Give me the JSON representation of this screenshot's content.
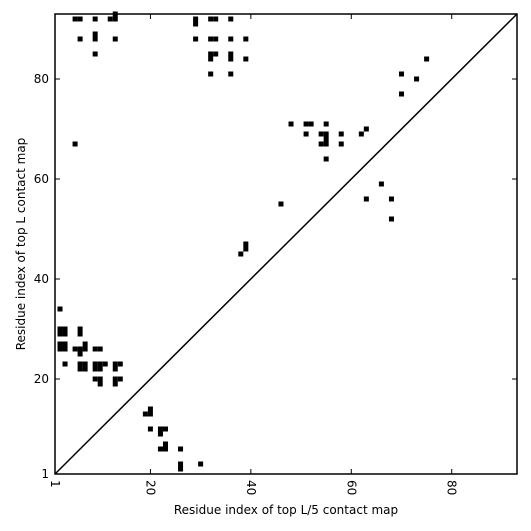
{
  "chart_data": {
    "type": "heatmap",
    "title": "",
    "xlabel": "Residue index of top L/5 contact map",
    "ylabel": "Residue index of top L contact map",
    "xlim": [
      1,
      93
    ],
    "ylim": [
      1,
      93
    ],
    "x_ticks": [
      "1",
      "20",
      "40",
      "60",
      "80"
    ],
    "y_ticks": [
      "1",
      "20",
      "40",
      "60",
      "80"
    ],
    "x_tick_rotation_deg": -90,
    "diagonal": true,
    "grid": false,
    "cell_color": "#000000",
    "cells": [
      [
        5,
        92
      ],
      [
        6,
        92
      ],
      [
        9,
        92
      ],
      [
        12,
        92
      ],
      [
        13,
        92
      ],
      [
        13,
        93
      ],
      [
        29,
        92
      ],
      [
        29,
        91
      ],
      [
        32,
        92
      ],
      [
        33,
        92
      ],
      [
        36,
        92
      ],
      [
        6,
        88
      ],
      [
        9,
        88
      ],
      [
        9,
        89
      ],
      [
        13,
        88
      ],
      [
        29,
        88
      ],
      [
        32,
        88
      ],
      [
        33,
        88
      ],
      [
        36,
        88
      ],
      [
        39,
        88
      ],
      [
        9,
        85
      ],
      [
        32,
        85
      ],
      [
        33,
        85
      ],
      [
        36,
        85
      ],
      [
        32,
        84
      ],
      [
        36,
        84
      ],
      [
        39,
        84
      ],
      [
        32,
        81
      ],
      [
        36,
        81
      ],
      [
        5,
        67
      ],
      [
        48,
        71
      ],
      [
        51,
        71
      ],
      [
        52,
        71
      ],
      [
        55,
        71
      ],
      [
        51,
        69
      ],
      [
        54,
        69
      ],
      [
        55,
        69
      ],
      [
        58,
        69
      ],
      [
        62,
        69
      ],
      [
        63,
        70
      ],
      [
        54,
        67
      ],
      [
        55,
        67
      ],
      [
        58,
        67
      ],
      [
        55,
        64
      ],
      [
        55,
        68
      ],
      [
        70,
        81
      ],
      [
        73,
        80
      ],
      [
        75,
        84
      ],
      [
        70,
        77
      ],
      [
        66,
        59
      ],
      [
        63,
        56
      ],
      [
        68,
        56
      ],
      [
        68,
        52
      ],
      [
        46,
        55
      ],
      [
        38,
        45
      ],
      [
        39,
        46
      ],
      [
        39,
        47
      ],
      [
        2,
        34
      ],
      [
        2,
        30
      ],
      [
        3,
        30
      ],
      [
        2,
        29
      ],
      [
        3,
        29
      ],
      [
        6,
        30
      ],
      [
        6,
        29
      ],
      [
        2,
        27
      ],
      [
        3,
        27
      ],
      [
        2,
        26
      ],
      [
        3,
        26
      ],
      [
        5,
        26
      ],
      [
        6,
        26
      ],
      [
        7,
        26
      ],
      [
        7,
        27
      ],
      [
        6,
        25
      ],
      [
        9,
        26
      ],
      [
        10,
        26
      ],
      [
        3,
        23
      ],
      [
        6,
        23
      ],
      [
        7,
        23
      ],
      [
        6,
        22
      ],
      [
        7,
        22
      ],
      [
        9,
        23
      ],
      [
        10,
        23
      ],
      [
        11,
        23
      ],
      [
        13,
        23
      ],
      [
        14,
        23
      ],
      [
        9,
        22
      ],
      [
        10,
        22
      ],
      [
        13,
        22
      ],
      [
        9,
        20
      ],
      [
        10,
        20
      ],
      [
        10,
        19
      ],
      [
        13,
        20
      ],
      [
        14,
        20
      ],
      [
        13,
        19
      ],
      [
        19,
        13
      ],
      [
        20,
        13
      ],
      [
        20,
        14
      ],
      [
        20,
        10
      ],
      [
        22,
        10
      ],
      [
        23,
        10
      ],
      [
        22,
        9
      ],
      [
        22,
        6
      ],
      [
        23,
        6
      ],
      [
        23,
        7
      ],
      [
        26,
        6
      ],
      [
        26,
        3
      ],
      [
        26,
        2
      ],
      [
        30,
        3
      ]
    ]
  }
}
